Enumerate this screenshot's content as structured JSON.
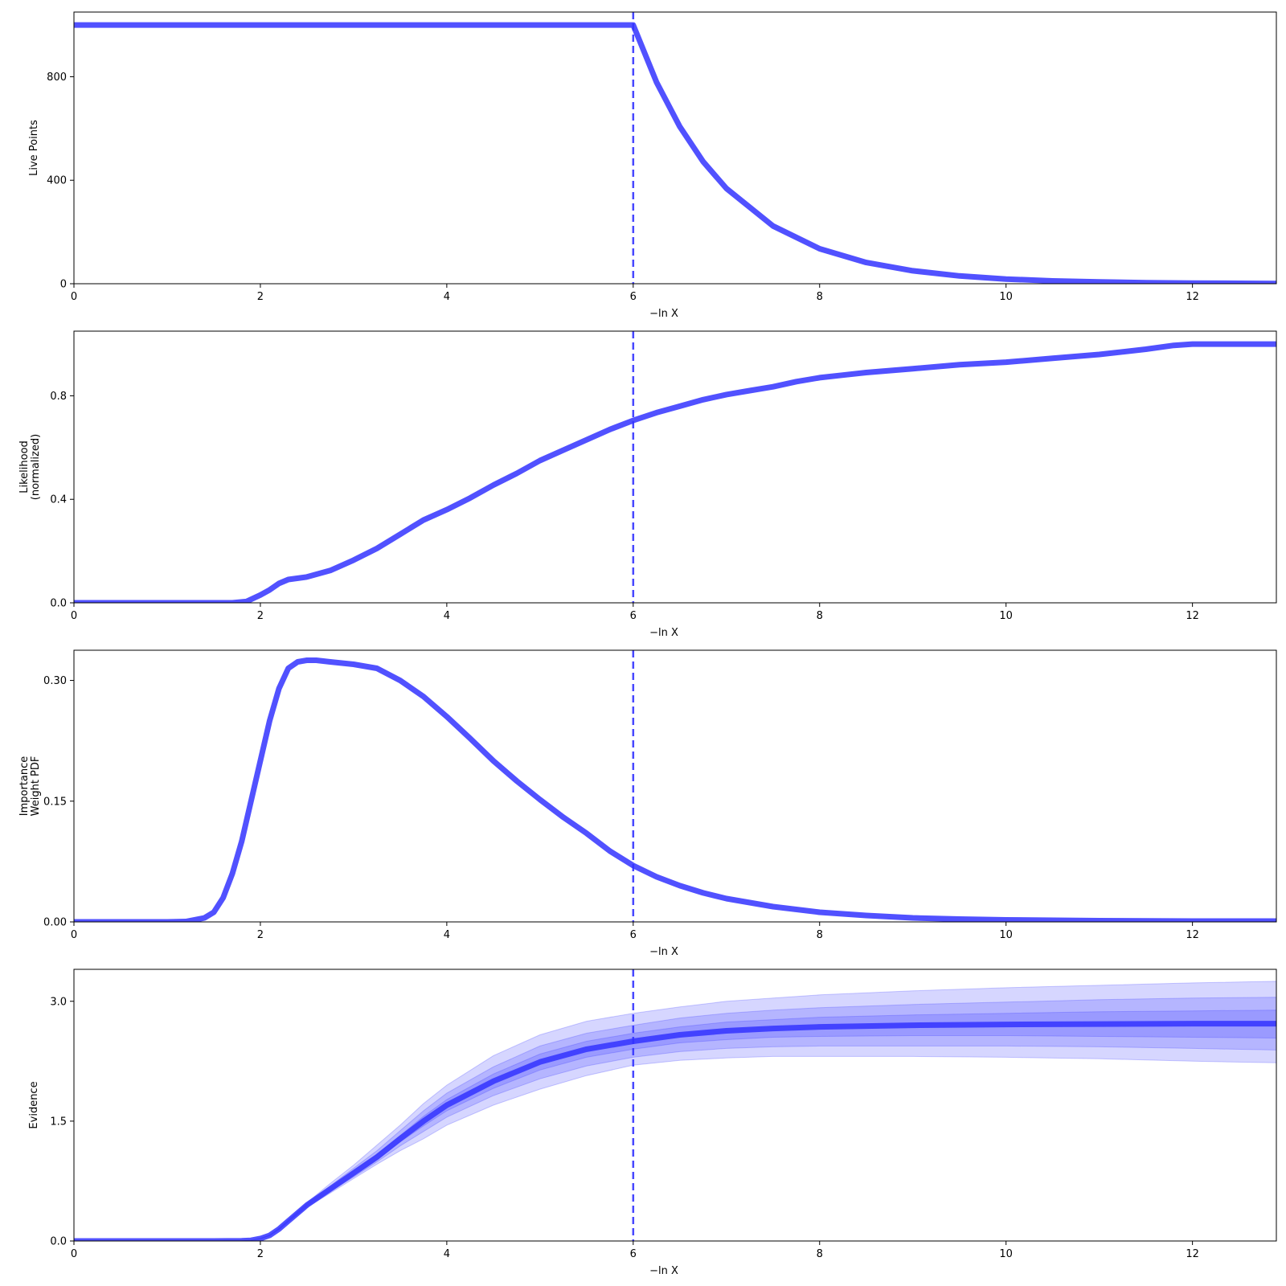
{
  "chart_data": [
    {
      "type": "line",
      "xlabel": "−ln X",
      "ylabel": [
        "Live Points"
      ],
      "xlim": [
        0,
        12.9
      ],
      "ylim": [
        0,
        1050
      ],
      "xticks": [
        "0",
        "2",
        "4",
        "6",
        "8",
        "10",
        "12"
      ],
      "yticks": [
        "0",
        "400",
        "800"
      ],
      "vline_x": 6.0,
      "series": [
        {
          "x": [
            0,
            1,
            2,
            3,
            4,
            5,
            5.98,
            6.0,
            6.25,
            6.5,
            6.75,
            7.0,
            7.5,
            8.0,
            8.5,
            9.0,
            9.5,
            10.0,
            10.5,
            11.0,
            11.5,
            12.0,
            12.5,
            12.9
          ],
          "y": [
            1000,
            1000,
            1000,
            1000,
            1000,
            1000,
            1000,
            1000,
            779,
            607,
            472,
            368,
            223,
            135,
            82,
            50,
            30,
            18,
            11,
            7,
            4,
            2.5,
            1.5,
            1
          ]
        }
      ]
    },
    {
      "type": "line",
      "xlabel": "−ln X",
      "ylabel": [
        "Likelihood",
        "(normalized)"
      ],
      "xlim": [
        0,
        12.9
      ],
      "ylim": [
        0,
        1.05
      ],
      "xticks": [
        "0",
        "2",
        "4",
        "6",
        "8",
        "10",
        "12"
      ],
      "yticks": [
        "0.0",
        "0.4",
        "0.8"
      ],
      "vline_x": 6.0,
      "series": [
        {
          "x": [
            0,
            1,
            1.7,
            1.85,
            2.0,
            2.1,
            2.2,
            2.3,
            2.5,
            2.75,
            3.0,
            3.25,
            3.5,
            3.75,
            4.0,
            4.25,
            4.5,
            4.75,
            5.0,
            5.25,
            5.5,
            5.75,
            6.0,
            6.25,
            6.5,
            6.75,
            7.0,
            7.25,
            7.5,
            7.75,
            8.0,
            8.25,
            8.5,
            9.0,
            9.5,
            10.0,
            10.5,
            11.0,
            11.5,
            11.8,
            12.0,
            12.5,
            12.9
          ],
          "y": [
            0,
            0,
            0,
            0.005,
            0.03,
            0.05,
            0.075,
            0.09,
            0.1,
            0.125,
            0.165,
            0.21,
            0.265,
            0.32,
            0.36,
            0.405,
            0.455,
            0.5,
            0.55,
            0.59,
            0.63,
            0.67,
            0.705,
            0.735,
            0.76,
            0.785,
            0.805,
            0.82,
            0.835,
            0.855,
            0.87,
            0.88,
            0.89,
            0.905,
            0.92,
            0.93,
            0.945,
            0.96,
            0.98,
            0.995,
            1.0,
            1.0,
            1.0
          ]
        }
      ]
    },
    {
      "type": "line",
      "xlabel": "−ln X",
      "ylabel": [
        "Importance",
        "Weight PDF"
      ],
      "xlim": [
        0,
        12.9
      ],
      "ylim": [
        0,
        0.3375
      ],
      "xticks": [
        "0",
        "2",
        "4",
        "6",
        "8",
        "10",
        "12"
      ],
      "yticks": [
        "0.00",
        "0.15",
        "0.30"
      ],
      "vline_x": 6.0,
      "series": [
        {
          "x": [
            0,
            1,
            1.2,
            1.4,
            1.5,
            1.6,
            1.7,
            1.8,
            1.9,
            2.0,
            2.1,
            2.2,
            2.3,
            2.4,
            2.5,
            2.6,
            2.75,
            3.0,
            3.25,
            3.5,
            3.75,
            4.0,
            4.25,
            4.5,
            4.75,
            5.0,
            5.25,
            5.5,
            5.75,
            6.0,
            6.25,
            6.5,
            6.75,
            7.0,
            7.5,
            8.0,
            8.5,
            9.0,
            9.5,
            10.0,
            11.0,
            12.0,
            12.9
          ],
          "y": [
            0,
            0,
            0.0005,
            0.005,
            0.012,
            0.03,
            0.06,
            0.1,
            0.15,
            0.2,
            0.25,
            0.29,
            0.315,
            0.323,
            0.325,
            0.325,
            0.323,
            0.32,
            0.315,
            0.3,
            0.28,
            0.255,
            0.228,
            0.2,
            0.175,
            0.152,
            0.13,
            0.11,
            0.088,
            0.07,
            0.056,
            0.045,
            0.036,
            0.029,
            0.019,
            0.012,
            0.008,
            0.005,
            0.0035,
            0.0025,
            0.0015,
            0.001,
            0.001
          ]
        }
      ]
    },
    {
      "type": "area",
      "xlabel": "−ln X",
      "ylabel": [
        "Evidence"
      ],
      "xlim": [
        0,
        12.9
      ],
      "ylim": [
        0,
        3.4
      ],
      "xticks": [
        "0",
        "2",
        "4",
        "6",
        "8",
        "10",
        "12"
      ],
      "yticks": [
        "0.0",
        "1.5",
        "3.0"
      ],
      "vline_x": 6.0,
      "x": [
        0,
        1.5,
        1.8,
        1.9,
        2.0,
        2.1,
        2.2,
        2.3,
        2.5,
        2.75,
        3.0,
        3.25,
        3.5,
        3.75,
        4.0,
        4.5,
        5.0,
        5.5,
        6.0,
        6.5,
        7.0,
        7.5,
        8.0,
        9.0,
        10.0,
        11.0,
        12.0,
        12.9
      ],
      "series": [
        {
          "name": "mean",
          "values": [
            0,
            0,
            0.002,
            0.008,
            0.03,
            0.07,
            0.15,
            0.25,
            0.45,
            0.65,
            0.85,
            1.05,
            1.28,
            1.5,
            1.7,
            2.0,
            2.24,
            2.4,
            2.5,
            2.58,
            2.63,
            2.66,
            2.68,
            2.7,
            2.71,
            2.715,
            2.72,
            2.72
          ]
        }
      ],
      "bands": [
        {
          "sigma": 3,
          "lower": [
            0,
            0,
            0.002,
            0.008,
            0.028,
            0.065,
            0.14,
            0.235,
            0.42,
            0.6,
            0.78,
            0.96,
            1.13,
            1.28,
            1.45,
            1.7,
            1.9,
            2.07,
            2.2,
            2.26,
            2.29,
            2.31,
            2.31,
            2.31,
            2.3,
            2.28,
            2.25,
            2.23
          ],
          "upper": [
            0,
            0,
            0.002,
            0.008,
            0.032,
            0.075,
            0.16,
            0.27,
            0.48,
            0.72,
            0.95,
            1.2,
            1.45,
            1.72,
            1.95,
            2.32,
            2.58,
            2.75,
            2.85,
            2.93,
            3.0,
            3.04,
            3.08,
            3.13,
            3.17,
            3.2,
            3.23,
            3.25
          ]
        },
        {
          "sigma": 2,
          "lower": [
            0,
            0,
            0.002,
            0.008,
            0.029,
            0.067,
            0.143,
            0.24,
            0.43,
            0.62,
            0.8,
            0.99,
            1.19,
            1.37,
            1.55,
            1.82,
            2.03,
            2.19,
            2.3,
            2.37,
            2.41,
            2.43,
            2.44,
            2.44,
            2.44,
            2.43,
            2.41,
            2.39
          ],
          "upper": [
            0,
            0,
            0.002,
            0.008,
            0.031,
            0.073,
            0.157,
            0.262,
            0.47,
            0.69,
            0.91,
            1.13,
            1.38,
            1.63,
            1.85,
            2.18,
            2.44,
            2.6,
            2.7,
            2.79,
            2.85,
            2.89,
            2.92,
            2.96,
            2.99,
            3.02,
            3.04,
            3.05
          ]
        },
        {
          "sigma": 1,
          "lower": [
            0,
            0,
            0.002,
            0.008,
            0.03,
            0.068,
            0.147,
            0.245,
            0.44,
            0.635,
            0.825,
            1.02,
            1.24,
            1.44,
            1.63,
            1.91,
            2.14,
            2.3,
            2.4,
            2.48,
            2.52,
            2.55,
            2.56,
            2.57,
            2.57,
            2.56,
            2.55,
            2.54
          ],
          "upper": [
            0,
            0,
            0.002,
            0.008,
            0.03,
            0.072,
            0.153,
            0.255,
            0.46,
            0.665,
            0.875,
            1.08,
            1.32,
            1.56,
            1.77,
            2.09,
            2.34,
            2.5,
            2.6,
            2.68,
            2.74,
            2.77,
            2.8,
            2.83,
            2.85,
            2.87,
            2.88,
            2.89
          ]
        }
      ]
    }
  ],
  "colors": {
    "line": "#3333ff",
    "band": "#3333ff",
    "vline": "#3333ff"
  }
}
